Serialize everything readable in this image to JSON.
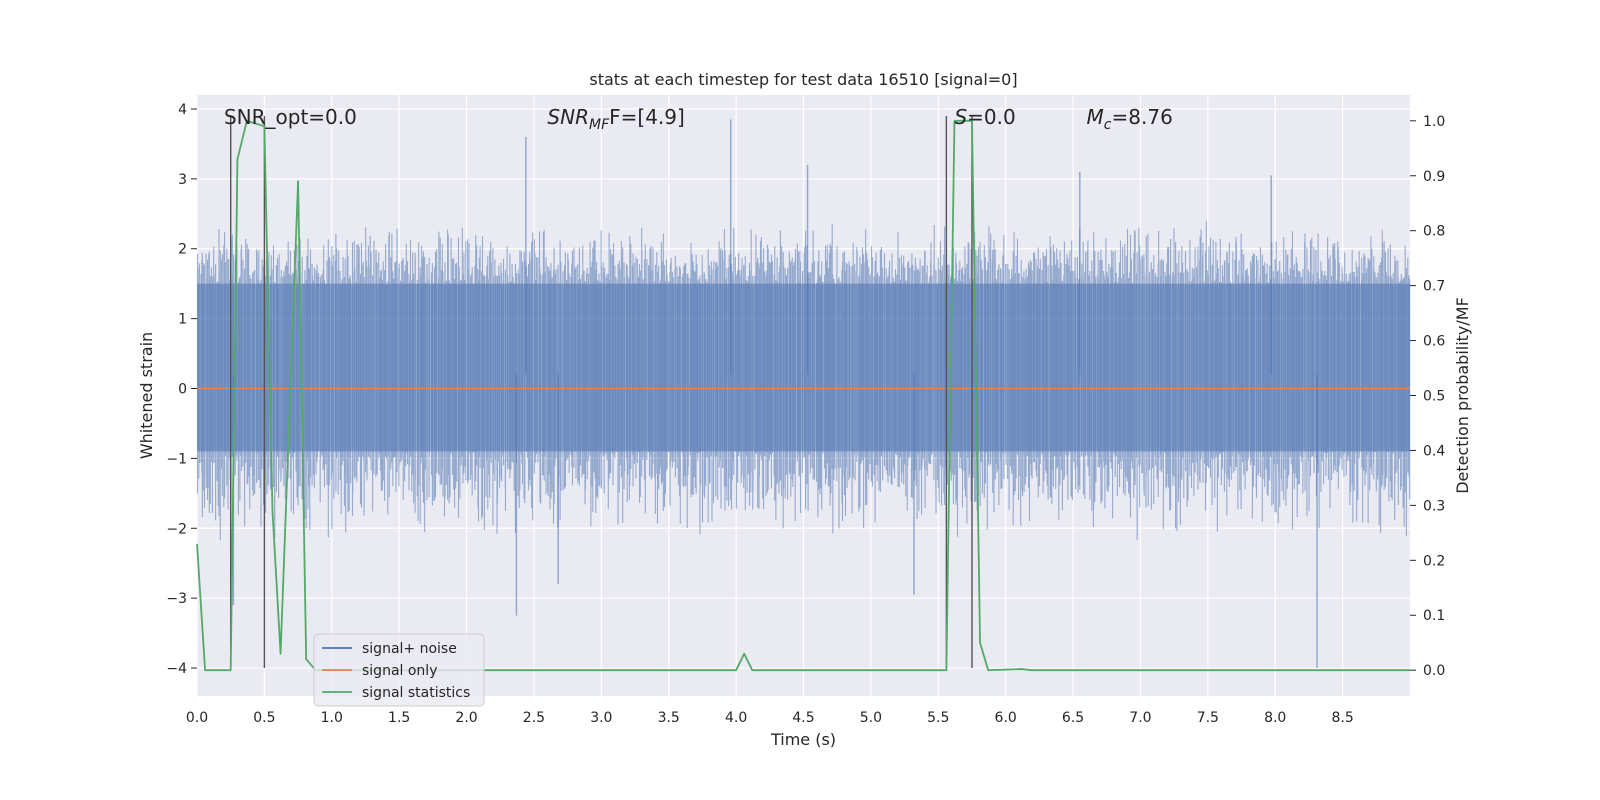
{
  "chart_data": {
    "type": "line",
    "title": "stats at each timestep for test data 16510 [signal=0]",
    "xlabel": "Time (s)",
    "ylabel": "Whitened strain",
    "y2label": "Detection probability/MF",
    "xlim": [
      0.0,
      9.0
    ],
    "ylim": [
      -4.4,
      4.2
    ],
    "y2lim": [
      -0.047,
      1.047
    ],
    "xticks": [
      "0.0",
      "0.5",
      "1.0",
      "1.5",
      "2.0",
      "2.5",
      "3.0",
      "3.5",
      "4.0",
      "4.5",
      "5.0",
      "5.5",
      "6.0",
      "6.5",
      "7.0",
      "7.5",
      "8.0",
      "8.5"
    ],
    "yticks": [
      "−4",
      "−3",
      "−2",
      "−1",
      "0",
      "1",
      "2",
      "3",
      "4"
    ],
    "y2ticks": [
      "0.0",
      "0.1",
      "0.2",
      "0.3",
      "0.4",
      "0.5",
      "0.6",
      "0.7",
      "0.8",
      "0.9",
      "1.0"
    ],
    "grid": true,
    "legend_position": "lower-left",
    "annotations": [
      {
        "pre": "SNR_opt=0.0",
        "x": 0.2,
        "y": 3.9
      },
      {
        "pre": "",
        "italic": "SNR",
        "sub": "MF",
        "post": "F=[4.9]",
        "x": 2.6,
        "y": 3.9
      },
      {
        "pre": "",
        "italic": "S",
        "sub": "",
        "post": "=0.0",
        "x": 5.62,
        "y": 3.9
      },
      {
        "pre": "",
        "italic": "M",
        "sub": "c",
        "post": "=8.76",
        "x": 6.6,
        "y": 3.9
      }
    ],
    "vlines": [
      {
        "x": 0.25,
        "ymin": -4.0,
        "ymax": 3.9
      },
      {
        "x": 0.5,
        "ymin": -4.0,
        "ymax": 3.9
      },
      {
        "x": 5.56,
        "ymin": -4.0,
        "ymax": 3.9
      },
      {
        "x": 5.75,
        "ymin": -4.0,
        "ymax": 3.9
      }
    ],
    "series": [
      {
        "name": "signal+ noise",
        "color": "#4c72b0",
        "axis": "left",
        "noise_band": {
          "inner_lo": -0.9,
          "inner_hi": 1.5,
          "dense_lo": -1.9,
          "dense_hi": 2.2
        },
        "spikes": [
          [
            0.27,
            -3.1
          ],
          [
            2.44,
            3.6
          ],
          [
            2.37,
            -3.25
          ],
          [
            2.68,
            -2.8
          ],
          [
            3.96,
            3.85
          ],
          [
            4.53,
            3.2
          ],
          [
            8.31,
            -4.0
          ],
          [
            6.55,
            3.1
          ],
          [
            7.97,
            3.05
          ],
          [
            5.32,
            -2.95
          ]
        ]
      },
      {
        "name": "signal only",
        "color": "#dd8452",
        "axis": "left",
        "x": [
          0.0,
          9.0
        ],
        "values": [
          0.0,
          0.0
        ]
      },
      {
        "name": "signal statistics",
        "color": "#55a868",
        "axis": "right",
        "x": [
          0.0,
          0.06,
          0.25,
          0.3,
          0.37,
          0.5,
          0.56,
          0.62,
          0.75,
          0.81,
          0.88,
          4.0,
          4.06,
          4.12,
          5.56,
          5.62,
          5.75,
          5.81,
          5.87,
          6.12,
          6.19,
          9.0
        ],
        "values": [
          0.23,
          0.0,
          0.0,
          0.93,
          1.0,
          0.99,
          0.29,
          0.03,
          0.89,
          0.02,
          0.0,
          0.0,
          0.03,
          0.0,
          0.0,
          1.0,
          1.0,
          0.05,
          0.0,
          0.002,
          0.0,
          0.0
        ]
      }
    ]
  }
}
